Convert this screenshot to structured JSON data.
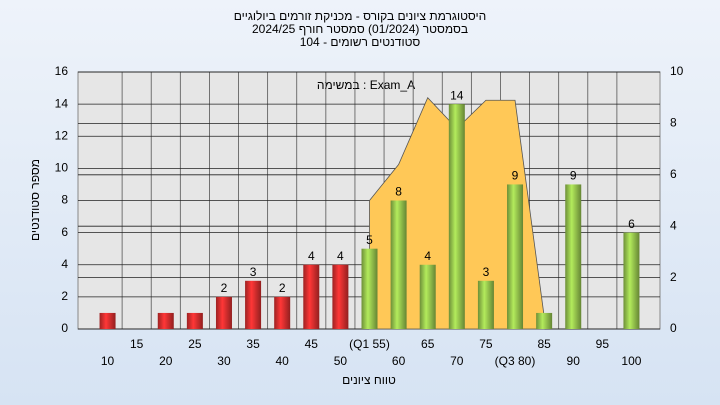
{
  "chart_data": {
    "type": "bar",
    "title": [
      "היסטוגרמת ציונים בקורס - מכניקת זורמים ביולוגיים",
      "בסמסטר  (01/2024)  סמסטר חורף 2024/25",
      "סטודנטים רשומים - 104"
    ],
    "annotation": "במשימה : Exam_A",
    "y_label": "מספר סטודנטים",
    "x_label": "טווח ציונים",
    "categories": [
      "10",
      "15",
      "20",
      "25",
      "30",
      "35",
      "40",
      "45",
      "50",
      "(Q1 55)",
      "60",
      "65",
      "70",
      "75",
      "(Q3 80)",
      "85",
      "90",
      "95",
      "100"
    ],
    "values": [
      1,
      0,
      1,
      1,
      2,
      3,
      2,
      4,
      4,
      5,
      8,
      4,
      14,
      3,
      9,
      1,
      9,
      0,
      6
    ],
    "colors": [
      "#e03030",
      "#e03030",
      "#e03030",
      "#e03030",
      "#e03030",
      "#e03030",
      "#e03030",
      "#e03030",
      "#e03030",
      "#9ccc50",
      "#9ccc50",
      "#9ccc50",
      "#9ccc50",
      "#9ccc50",
      "#9ccc50",
      "#9ccc50",
      "#9ccc50",
      "#9ccc50",
      "#9ccc50"
    ],
    "area": {
      "axis": "y2",
      "color": "#ffc857",
      "values": [
        null,
        null,
        null,
        null,
        null,
        null,
        null,
        null,
        null,
        5,
        6.4,
        9,
        7.8,
        8.9,
        8.9,
        0.5,
        null,
        null,
        null
      ]
    },
    "ylim": [
      0,
      16
    ],
    "yticks": [
      0,
      2,
      4,
      6,
      8,
      10,
      12,
      14,
      16
    ],
    "y2lim": [
      0,
      10
    ],
    "y2ticks": [
      0,
      2,
      4,
      6,
      8,
      10
    ],
    "grid": true
  }
}
